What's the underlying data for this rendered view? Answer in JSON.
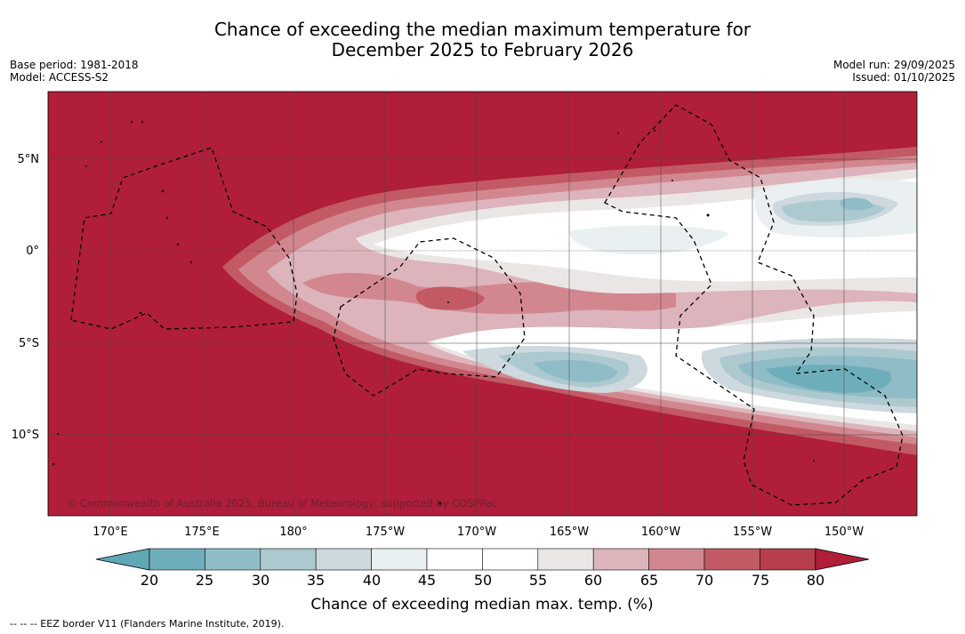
{
  "title_line1": "Chance of exceeding the median maximum temperature for",
  "title_line2": "December 2025 to February 2026",
  "meta_left": {
    "base_period": "Base period: 1981-2018",
    "model": "Model: ACCESS-S2"
  },
  "meta_right": {
    "model_run": "Model run: 29/09/2025",
    "issued": "Issued: 01/10/2025"
  },
  "map": {
    "lat_labels": [
      "5°N",
      "0°",
      "5°S",
      "10°S"
    ],
    "lon_labels": [
      "170°E",
      "175°E",
      "180°",
      "175°W",
      "170°W",
      "165°W",
      "160°W",
      "155°W",
      "150°W"
    ],
    "copyright": "© Commonwealth of Australia 2025, Bureau of Meteorology, supported by COSPPac",
    "lat_values": [
      5,
      0,
      -5,
      -10
    ],
    "lon_values": [
      170,
      175,
      180,
      -175,
      -170,
      -165,
      -160,
      -155,
      -150
    ]
  },
  "colorbar": {
    "ticks": [
      "20",
      "25",
      "30",
      "35",
      "40",
      "45",
      "50",
      "55",
      "60",
      "65",
      "70",
      "75",
      "80"
    ],
    "title": "Chance of exceeding median max. temp. (%)",
    "colors": [
      "#5fa8b5",
      "#6eaebb",
      "#8fbcc6",
      "#acc9d0",
      "#cdd9de",
      "#eaeff1",
      "#ffffff",
      "#ffffff",
      "#ebe6e6",
      "#ddb4bb",
      "#d2878f",
      "#c25a66",
      "#b73e4c",
      "#b01e3a"
    ]
  },
  "footer": "--  --  -- EEZ border V11 (Flanders Marine Institute, 2019)."
}
